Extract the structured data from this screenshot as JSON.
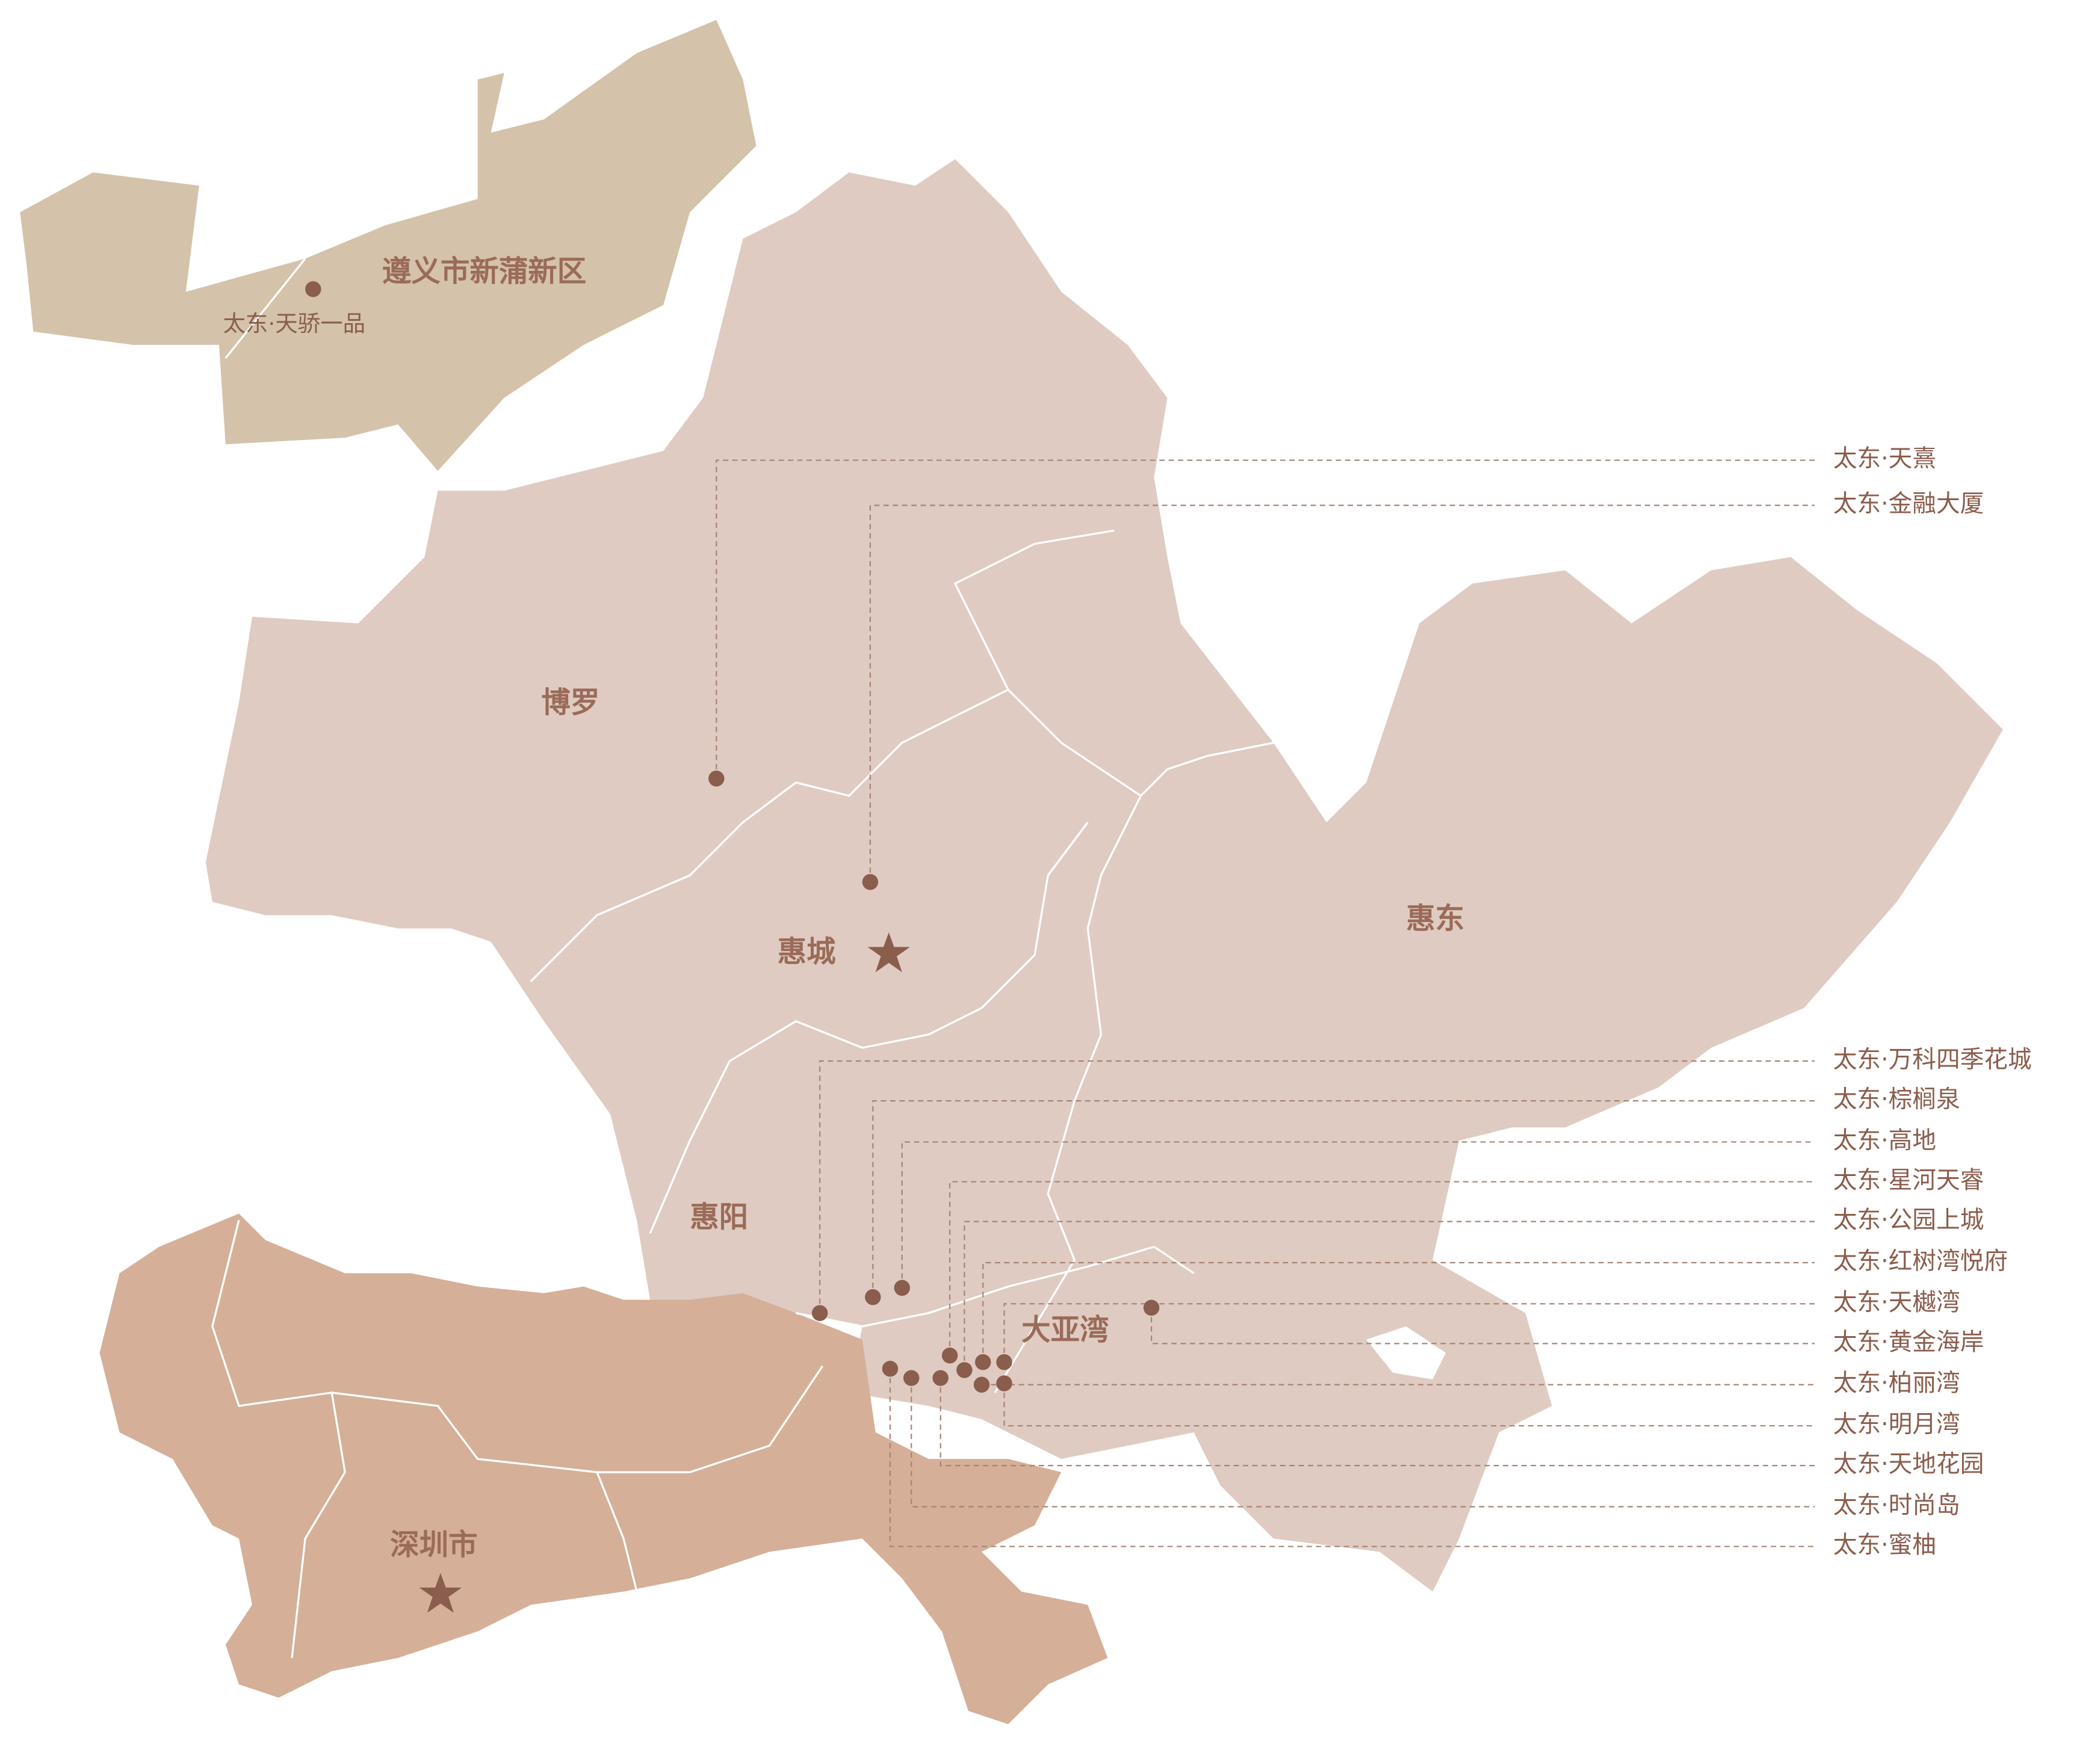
{
  "regions": [
    {
      "label": "遵义市新蒲新区"
    },
    {
      "label": "博罗"
    },
    {
      "label": "惠城"
    },
    {
      "label": "惠东"
    },
    {
      "label": "惠阳"
    },
    {
      "label": "大亚湾"
    },
    {
      "label": "深圳市"
    }
  ],
  "projects": [
    {
      "label": "太东·天骄一品"
    },
    {
      "label": "太东·天熹"
    },
    {
      "label": "太东·金融大厦"
    },
    {
      "label": "太东·万科四季花城"
    },
    {
      "label": "太东·棕榈泉"
    },
    {
      "label": "太东·高地"
    },
    {
      "label": "太东·星河天睿"
    },
    {
      "label": "太东·公园上城"
    },
    {
      "label": "太东·红树湾悦府"
    },
    {
      "label": "太东·天樾湾"
    },
    {
      "label": "太东·黄金海岸"
    },
    {
      "label": "太东·柏丽湾"
    },
    {
      "label": "太东·明月湾"
    },
    {
      "label": "太东·天地花园"
    },
    {
      "label": "太东·时尚岛"
    },
    {
      "label": "太东·蜜柚"
    }
  ]
}
